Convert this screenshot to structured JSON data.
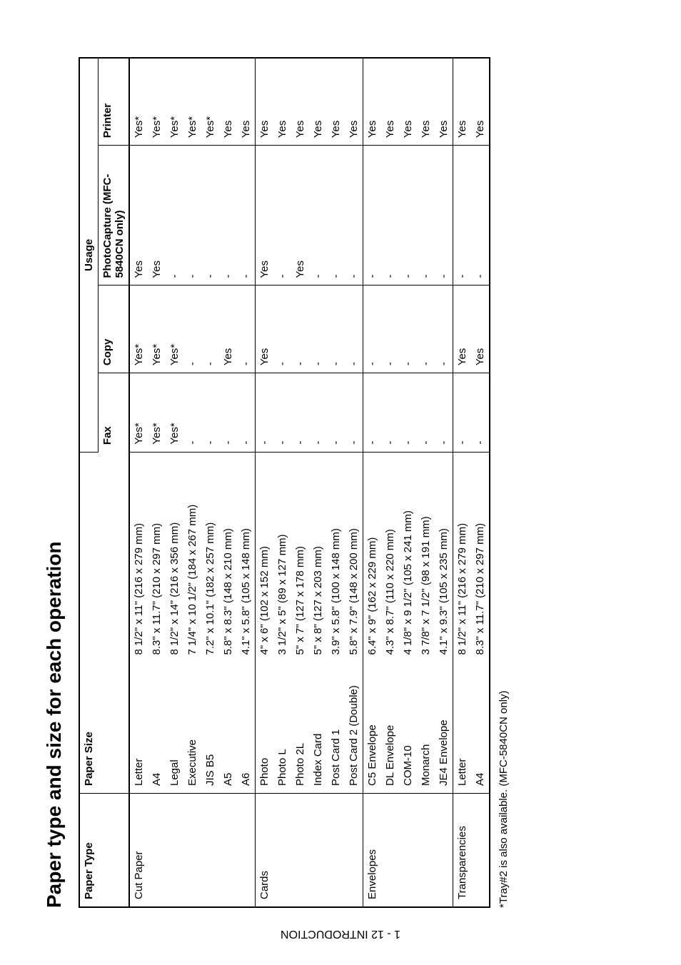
{
  "sidebar_label": "1 - 12   INTRODUCTION",
  "title": "Paper type and size for each operation",
  "headers": {
    "paper_type": "Paper Type",
    "paper_size": "Paper Size",
    "usage": "Usage",
    "fax": "Fax",
    "copy": "Copy",
    "photocapture": "PhotoCapture (MFC-5840CN only)",
    "printer": "Printer"
  },
  "groups": [
    {
      "type": "Cut Paper",
      "rows": [
        {
          "size": "Letter",
          "dim": "8 1/2\" x 11\" (216 x 279 mm)",
          "fax": "Yes*",
          "copy": "Yes*",
          "pc": "Yes",
          "printer": "Yes*"
        },
        {
          "size": "A4",
          "dim": "8.3\" x 11.7\" (210 x 297 mm)",
          "fax": "Yes*",
          "copy": "Yes*",
          "pc": "Yes",
          "printer": "Yes*"
        },
        {
          "size": "Legal",
          "dim": "8 1/2\" x 14\" (216 x 356 mm)",
          "fax": "Yes*",
          "copy": "Yes*",
          "pc": "-",
          "printer": "Yes*"
        },
        {
          "size": "Executive",
          "dim": "7 1/4\" x 10 1/2\" (184 x 267 mm)",
          "fax": "-",
          "copy": "-",
          "pc": "-",
          "printer": "Yes*"
        },
        {
          "size": "JIS B5",
          "dim": "7.2\" x 10.1\" (182 x 257 mm)",
          "fax": "-",
          "copy": "-",
          "pc": "-",
          "printer": "Yes*"
        },
        {
          "size": "A5",
          "dim": "5.8\" x 8.3\" (148 x 210 mm)",
          "fax": "-",
          "copy": "Yes",
          "pc": "-",
          "printer": "Yes"
        },
        {
          "size": "A6",
          "dim": "4.1\" x 5.8\" (105 x 148 mm)",
          "fax": "-",
          "copy": "-",
          "pc": "-",
          "printer": "Yes"
        }
      ]
    },
    {
      "type": "Cards",
      "rows": [
        {
          "size": "Photo",
          "dim": "4\" x 6\" (102 x 152 mm)",
          "fax": "-",
          "copy": "Yes",
          "pc": "Yes",
          "printer": "Yes"
        },
        {
          "size": "Photo L",
          "dim": "3 1/2\" x 5\" (89 x 127 mm)",
          "fax": "-",
          "copy": "-",
          "pc": "-",
          "printer": "Yes"
        },
        {
          "size": "Photo 2L",
          "dim": "5\" x 7\" (127 x 178 mm)",
          "fax": "-",
          "copy": "-",
          "pc": "Yes",
          "printer": "Yes"
        },
        {
          "size": "Index Card",
          "dim": "5\" x 8\" (127 x 203 mm)",
          "fax": "-",
          "copy": "-",
          "pc": "-",
          "printer": "Yes"
        },
        {
          "size": "Post Card 1",
          "dim": "3.9\" x 5.8\" (100 x 148 mm)",
          "fax": "-",
          "copy": "-",
          "pc": "-",
          "printer": "Yes"
        },
        {
          "size": "Post Card 2 (Double)",
          "dim": "5.8\" x 7.9\" (148 x 200 mm)",
          "fax": "-",
          "copy": "-",
          "pc": "-",
          "printer": "Yes"
        }
      ]
    },
    {
      "type": "Envelopes",
      "rows": [
        {
          "size": "C5 Envelope",
          "dim": "6.4\" x 9\" (162 x 229 mm)",
          "fax": "-",
          "copy": "-",
          "pc": "-",
          "printer": "Yes"
        },
        {
          "size": "DL Envelope",
          "dim": "4.3\" x 8.7\" (110 x 220 mm)",
          "fax": "-",
          "copy": "-",
          "pc": "-",
          "printer": "Yes"
        },
        {
          "size": "COM-10",
          "dim": "4 1/8\" x 9 1/2\" (105 x 241 mm)",
          "fax": "-",
          "copy": "-",
          "pc": "-",
          "printer": "Yes"
        },
        {
          "size": "Monarch",
          "dim": "3 7/8\" x 7 1/2\" (98 x 191 mm)",
          "fax": "-",
          "copy": "-",
          "pc": "-",
          "printer": "Yes"
        },
        {
          "size": "JE4 Envelope",
          "dim": "4.1\" x 9.3\" (105 x 235 mm)",
          "fax": "-",
          "copy": "-",
          "pc": "-",
          "printer": "Yes"
        }
      ]
    },
    {
      "type": "Transparencies",
      "rows": [
        {
          "size": "Letter",
          "dim": "8 1/2\" x 11\" (216 x 279 mm)",
          "fax": "-",
          "copy": "Yes",
          "pc": "-",
          "printer": "Yes"
        },
        {
          "size": "A4",
          "dim": "8.3\" x 11.7\" (210 x 297 mm)",
          "fax": "-",
          "copy": "Yes",
          "pc": "-",
          "printer": "Yes"
        }
      ]
    }
  ],
  "footnote": "*Tray#2 is also available. (MFC-5840CN only)"
}
